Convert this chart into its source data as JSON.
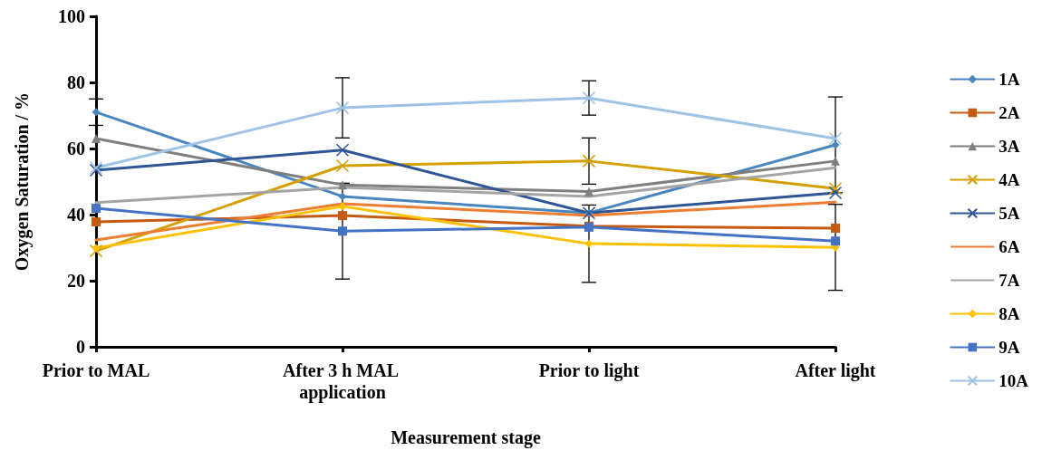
{
  "chart_data": {
    "type": "line",
    "xlabel": "Measurement stage",
    "ylabel": "Oxygen Saturation / %",
    "categories": [
      "Prior to MAL",
      "After 3 h MAL application",
      "Prior to light",
      "After light"
    ],
    "ylim": [
      0,
      100
    ],
    "yticks": [
      0,
      20,
      40,
      60,
      80,
      100
    ],
    "grid": false,
    "legend": "right",
    "series": [
      {
        "name": "1A",
        "color": "#4a86be",
        "marker": "diamond",
        "values": [
          71,
          45.5,
          40.5,
          61.1
        ],
        "errors": [
          4,
          null,
          null,
          14.5
        ]
      },
      {
        "name": "2A",
        "color": "#c55a11",
        "marker": "square",
        "values": [
          37.8,
          39.7,
          36.5,
          35.9
        ]
      },
      {
        "name": "3A",
        "color": "#7f7f7f",
        "marker": "triangle",
        "values": [
          63,
          49,
          47,
          56.2
        ]
      },
      {
        "name": "4A",
        "color": "#d4a000",
        "marker": "cross",
        "values": [
          29,
          54.8,
          56.2,
          47.9
        ],
        "errors": [
          null,
          null,
          7,
          null
        ]
      },
      {
        "name": "5A",
        "color": "#2f5597",
        "marker": "cross",
        "values": [
          53.4,
          59.5,
          40.5,
          46.6
        ]
      },
      {
        "name": "6A",
        "color": "#ed7d31",
        "marker": "none",
        "values": [
          32.3,
          43.3,
          39.7,
          43.8
        ]
      },
      {
        "name": "7A",
        "color": "#a5a5a5",
        "marker": "none",
        "values": [
          43.6,
          48.2,
          45.5,
          54.2
        ]
      },
      {
        "name": "8A",
        "color": "#ffc000",
        "marker": "diamond",
        "values": [
          29.9,
          42.5,
          31.2,
          30.1
        ],
        "errors": [
          null,
          null,
          11.7,
          13
        ]
      },
      {
        "name": "9A",
        "color": "#4472c4",
        "marker": "square",
        "values": [
          41.9,
          35,
          36.2,
          32
        ],
        "errors": [
          null,
          14.5,
          null,
          null
        ]
      },
      {
        "name": "10A",
        "color": "#9dc3e6",
        "marker": "cross",
        "values": [
          54.2,
          72.3,
          75.3,
          63
        ],
        "errors": [
          null,
          9.1,
          5.2,
          null
        ]
      }
    ]
  }
}
